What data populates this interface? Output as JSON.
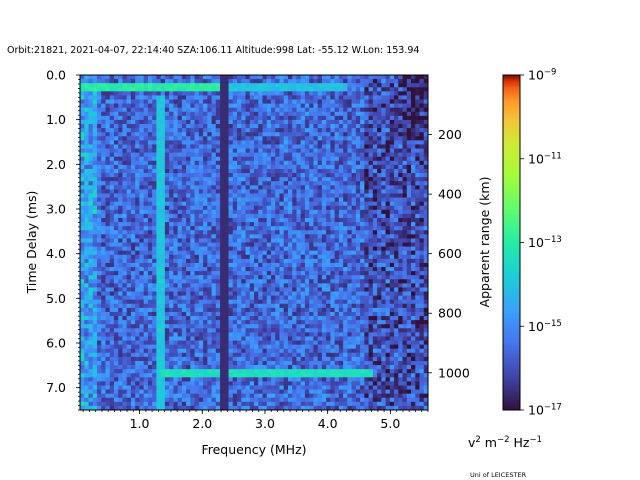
{
  "header": {
    "title": "Orbit:21821, 2021-04-07, 22:14:40 SZA:106.11 Altitude:998 Lat: -55.12 W.Lon: 153.94"
  },
  "footer": {
    "credit": "Uni of LEICESTER"
  },
  "chart_data": {
    "type": "heatmap",
    "xlabel": "Frequency (MHz)",
    "ylabel": "Time Delay (ms)",
    "y2label": "Apparent range (km)",
    "xlim": [
      0.05,
      5.6
    ],
    "ylim": [
      7.5,
      0.0
    ],
    "y2lim": [
      0,
      1125
    ],
    "x_ticks": [
      {
        "value": 1.0,
        "label": "1.0"
      },
      {
        "value": 2.0,
        "label": "2.0"
      },
      {
        "value": 3.0,
        "label": "3.0"
      },
      {
        "value": 4.0,
        "label": "4.0"
      },
      {
        "value": 5.0,
        "label": "5.0"
      }
    ],
    "y_ticks": [
      {
        "value": 0.0,
        "label": "0.0"
      },
      {
        "value": 1.0,
        "label": "1.0"
      },
      {
        "value": 2.0,
        "label": "2.0"
      },
      {
        "value": 3.0,
        "label": "3.0"
      },
      {
        "value": 4.0,
        "label": "4.0"
      },
      {
        "value": 5.0,
        "label": "5.0"
      },
      {
        "value": 6.0,
        "label": "6.0"
      },
      {
        "value": 7.0,
        "label": "7.0"
      }
    ],
    "y2_ticks": [
      {
        "value": 200,
        "label": "200"
      },
      {
        "value": 400,
        "label": "400"
      },
      {
        "value": 600,
        "label": "600"
      },
      {
        "value": 800,
        "label": "800"
      },
      {
        "value": 1000,
        "label": "1000"
      }
    ],
    "colorbar": {
      "scale": "log",
      "colormap": "turbo",
      "range": [
        1e-17,
        1e-09
      ],
      "ticks": [
        {
          "exp": -9,
          "label": "10",
          "sup": "−9"
        },
        {
          "exp": -11,
          "label": "10",
          "sup": "−11"
        },
        {
          "exp": -13,
          "label": "10",
          "sup": "−13"
        },
        {
          "exp": -15,
          "label": "10",
          "sup": "−15"
        },
        {
          "exp": -17,
          "label": "10",
          "sup": "−17"
        }
      ],
      "units": {
        "v": "v",
        "v_sup": "2",
        "m": " m",
        "m_sup": "−2",
        "hz": " Hz",
        "hz_sup": "−1"
      }
    },
    "features": {
      "surface_echo_delay_ms": 6.65,
      "top_band_delay_ms": 0.25,
      "vertical_lines_mhz": [
        1.33,
        2.33,
        2.4
      ]
    },
    "grid": false,
    "legend": "none"
  }
}
